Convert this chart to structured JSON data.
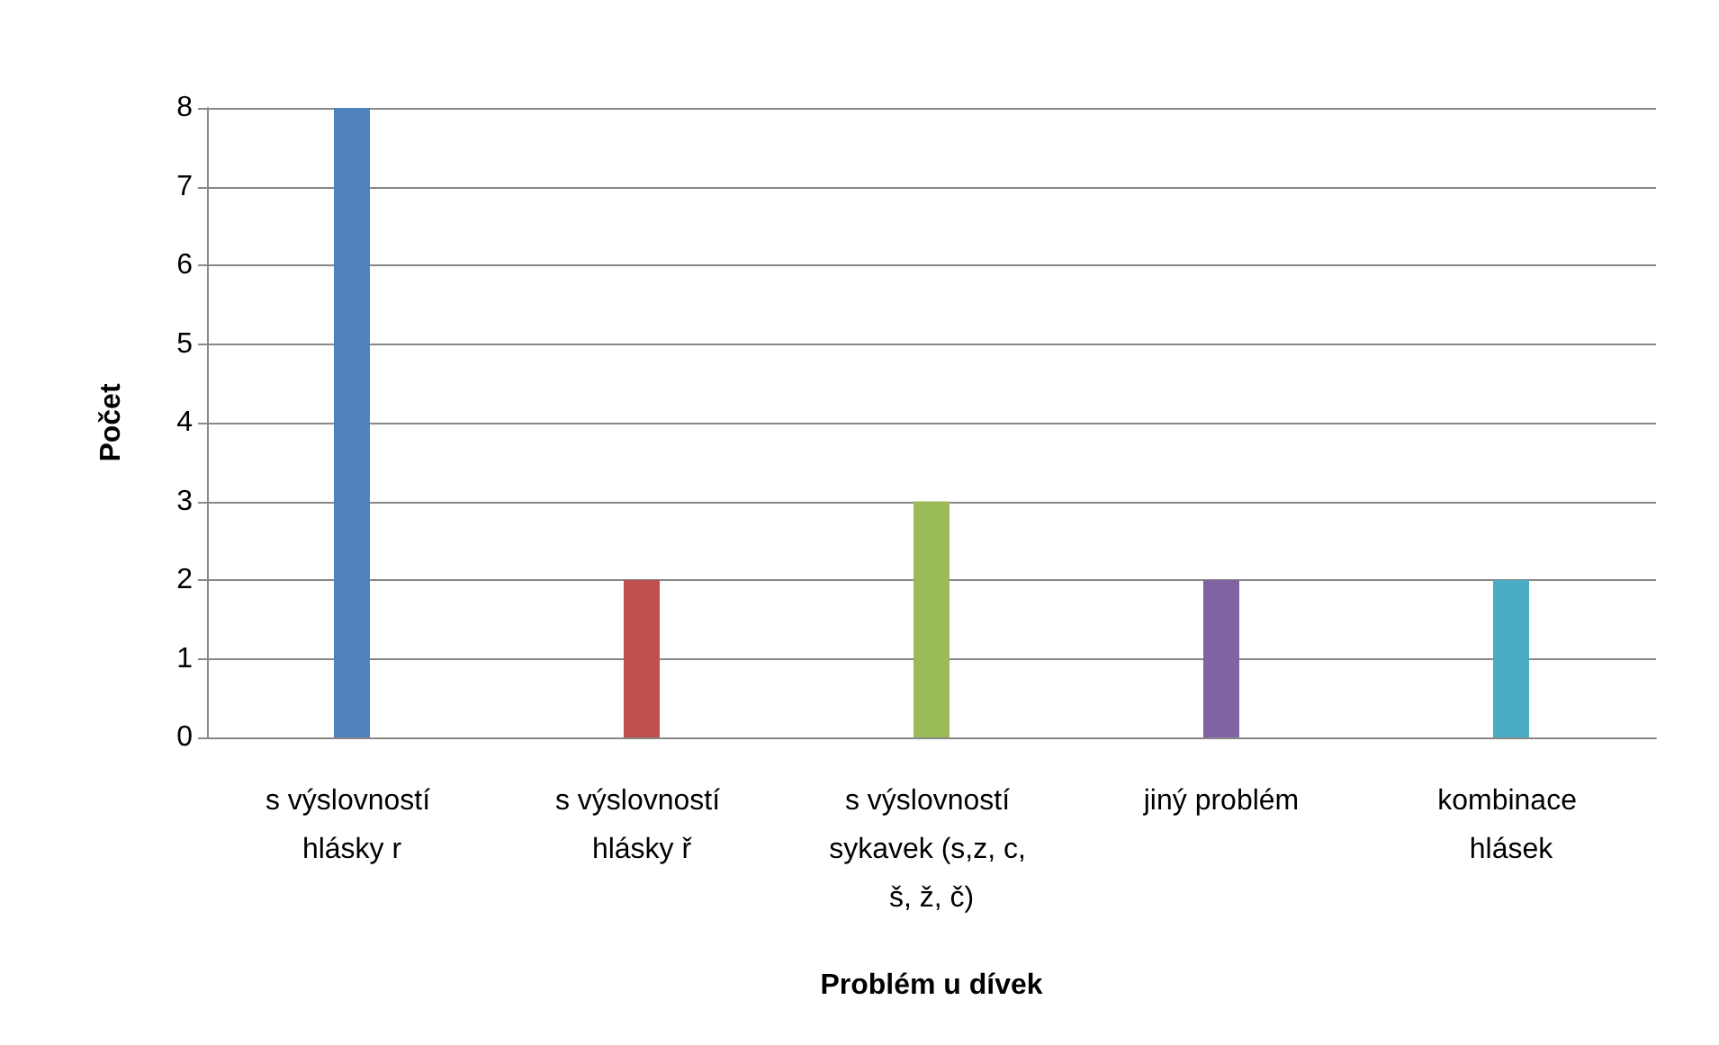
{
  "chart_data": {
    "type": "bar",
    "xlabel": "Problém u dívek",
    "ylabel": "Počet",
    "categories": [
      "s výslovností hlásky r",
      "s výslovností hlásky ř",
      "s výslovností sykavek (s,z, c, š, ž, č)",
      "jiný problém",
      "kombinace hlásek"
    ],
    "values": [
      8,
      2,
      3,
      2,
      2
    ],
    "colors": [
      "#4f81bd",
      "#c0504d",
      "#9bbb59",
      "#8064a2",
      "#4bacc6"
    ],
    "ylim": [
      0,
      8
    ],
    "yticks": [
      0,
      1,
      2,
      3,
      4,
      5,
      6,
      7,
      8
    ],
    "grid": "y"
  }
}
